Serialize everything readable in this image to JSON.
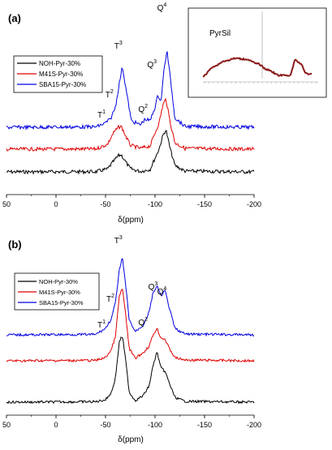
{
  "colors": {
    "NOH": "#000000",
    "M41S": "#e00000",
    "SBA15": "#0000e0",
    "inset": "#8b1a1a"
  },
  "chart_data": [
    {
      "panel": "(a)",
      "type": "line",
      "xlabel": "δ(ppm)",
      "xlim": [
        50,
        -200
      ],
      "xticks": [
        50,
        0,
        -50,
        -100,
        -150,
        -200
      ],
      "yticks_shown": false,
      "legend_position": "upper-left",
      "series": [
        {
          "name": "NOH-Pyr-30%",
          "color_key": "NOH",
          "x": [
            50,
            -40,
            -52,
            -58,
            -63,
            -66,
            -70,
            -75,
            -85,
            -95,
            -100,
            -104,
            -108,
            -111,
            -115,
            -120,
            -130,
            -200
          ],
          "y": [
            0,
            0.2,
            3.5,
            13,
            20,
            21,
            13,
            4,
            0.5,
            3,
            17,
            28,
            45,
            52,
            30,
            8,
            1,
            0
          ]
        },
        {
          "name": "M41S-Pyr-30%",
          "color_key": "M41S",
          "x": [
            50,
            -40,
            -52,
            -58,
            -63,
            -66,
            -70,
            -75,
            -85,
            -95,
            -100,
            -104,
            -108,
            -111,
            -115,
            -120,
            -130,
            -200
          ],
          "y": [
            0,
            0.2,
            6,
            20,
            27,
            28,
            17,
            5,
            1,
            4,
            20,
            32,
            55,
            62,
            35,
            8,
            1,
            0
          ]
        },
        {
          "name": "SBA15-Pyr-30%",
          "color_key": "SBA15",
          "x": [
            50,
            -40,
            -48,
            -55,
            -60,
            -64,
            -67,
            -71,
            -76,
            -85,
            -90,
            -95,
            -100,
            -103,
            -106,
            -109,
            -112,
            -116,
            -120,
            -130,
            -200
          ],
          "y": [
            0,
            0.5,
            4,
            10,
            25,
            55,
            75,
            45,
            8,
            3,
            10,
            8,
            25,
            40,
            32,
            70,
            95,
            55,
            12,
            1,
            0
          ]
        }
      ],
      "peak_labels": [
        {
          "text": "T",
          "sup": "1",
          "x": -50
        },
        {
          "text": "T",
          "sup": "2",
          "x": -58
        },
        {
          "text": "T",
          "sup": "3",
          "x": -67
        },
        {
          "text": "Q",
          "sup": "2",
          "x": -92
        },
        {
          "text": "Q",
          "sup": "3",
          "x": -101
        },
        {
          "text": "Q",
          "sup": "4",
          "x": -111
        }
      ],
      "inset": {
        "label": "PyrSil",
        "type": "line",
        "color_key": "inset",
        "x": [
          0,
          0.1,
          0.2,
          0.3,
          0.4,
          0.5,
          0.6,
          0.7,
          0.8,
          0.85,
          0.9,
          0.95,
          1.0
        ],
        "y": [
          0,
          0.55,
          0.85,
          1,
          0.95,
          0.7,
          0.35,
          0.05,
          0.05,
          0.9,
          0.7,
          0.15,
          0.1
        ]
      }
    },
    {
      "panel": "(b)",
      "type": "line",
      "xlabel": "δ(ppm)",
      "xlim": [
        50,
        -200
      ],
      "xticks": [
        50,
        0,
        -50,
        -100,
        -150,
        -200
      ],
      "yticks_shown": false,
      "legend_position": "upper-left",
      "series": [
        {
          "name": "NOH-Pyr-30%",
          "color_key": "NOH",
          "x": [
            50,
            -40,
            -50,
            -56,
            -60,
            -64,
            -67,
            -70,
            -74,
            -80,
            -88,
            -94,
            -98,
            -102,
            -106,
            -110,
            -114,
            -120,
            -130,
            -200
          ],
          "y": [
            0,
            0.5,
            3,
            12,
            30,
            75,
            82,
            55,
            12,
            2,
            8,
            20,
            45,
            62,
            42,
            38,
            25,
            6,
            1,
            0
          ]
        },
        {
          "name": "M41S-Pyr-30%",
          "color_key": "M41S",
          "x": [
            50,
            -40,
            -50,
            -56,
            -60,
            -64,
            -67,
            -70,
            -74,
            -80,
            -88,
            -94,
            -98,
            -102,
            -106,
            -110,
            -114,
            -120,
            -130,
            -200
          ],
          "y": [
            0,
            0.5,
            4,
            14,
            30,
            80,
            90,
            60,
            15,
            3,
            10,
            18,
            32,
            40,
            28,
            27,
            16,
            4,
            1,
            0
          ]
        },
        {
          "name": "SBA15-Pyr-30%",
          "color_key": "SBA15",
          "x": [
            50,
            -40,
            -50,
            -56,
            -60,
            -64,
            -67,
            -70,
            -74,
            -80,
            -88,
            -94,
            -98,
            -102,
            -106,
            -110,
            -114,
            -120,
            -130,
            -200
          ],
          "y": [
            0,
            0.5,
            8,
            20,
            40,
            80,
            95,
            65,
            18,
            4,
            12,
            28,
            52,
            60,
            48,
            55,
            35,
            8,
            1,
            0
          ]
        }
      ],
      "peak_labels": [
        {
          "text": "T",
          "sup": "1",
          "x": -50
        },
        {
          "text": "T",
          "sup": "2",
          "x": -59
        },
        {
          "text": "T",
          "sup": "3",
          "x": -67
        },
        {
          "text": "Q",
          "sup": "2",
          "x": -92
        },
        {
          "text": "Q",
          "sup": "3",
          "x": -102
        },
        {
          "text": "Q",
          "sup": "4",
          "x": -111
        }
      ]
    }
  ]
}
